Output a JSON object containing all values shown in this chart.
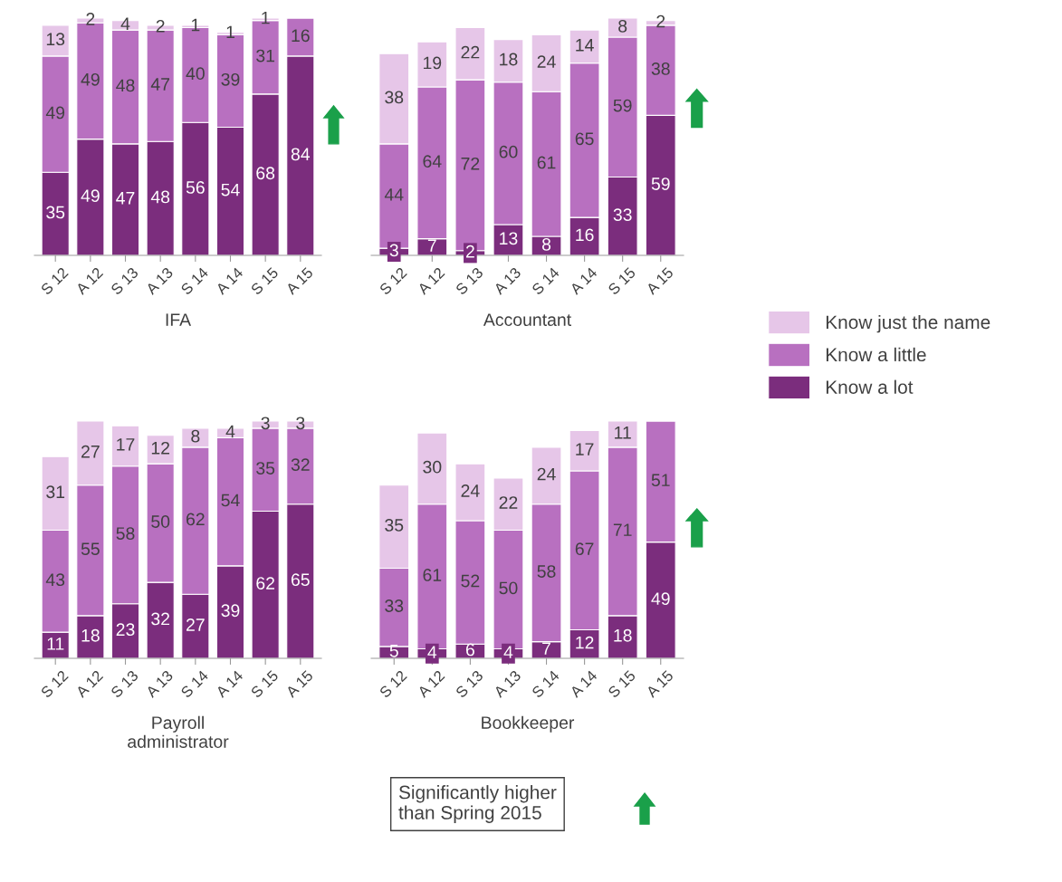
{
  "chart_data": [
    {
      "type": "bar",
      "stacked": true,
      "data_labels": true,
      "tick_labels": "x",
      "legend": "right",
      "xlabel": "IFA",
      "categories": [
        "S 12",
        "A 12",
        "S 13",
        "A 13",
        "S 14",
        "A 14",
        "S 15",
        "A 15"
      ],
      "series": [
        {
          "name": "Know a lot",
          "color": "#7b2d7d",
          "values": [
            35,
            49,
            47,
            48,
            56,
            54,
            68,
            84
          ]
        },
        {
          "name": "Know a little",
          "color": "#b870c0",
          "values": [
            49,
            49,
            48,
            47,
            40,
            39,
            31,
            16
          ]
        },
        {
          "name": "Know just the name",
          "color": "#e6c6e8",
          "values": [
            13,
            2,
            4,
            2,
            1,
            1,
            1,
            null
          ]
        }
      ]
    },
    {
      "type": "bar",
      "stacked": true,
      "data_labels": true,
      "tick_labels": "x",
      "xlabel": "Accountant",
      "categories": [
        "S 12",
        "A 12",
        "S 13",
        "A 13",
        "S 14",
        "A 14",
        "S 15",
        "A 15"
      ],
      "series": [
        {
          "color": "#7b2d7d",
          "values": [
            3,
            7,
            2,
            13,
            8,
            16,
            33,
            59
          ]
        },
        {
          "color": "#b870c0",
          "values": [
            44,
            64,
            72,
            60,
            61,
            65,
            59,
            38
          ]
        },
        {
          "color": "#e6c6e8",
          "values": [
            38,
            19,
            22,
            18,
            24,
            14,
            8,
            2
          ]
        }
      ]
    },
    {
      "type": "bar",
      "stacked": true,
      "data_labels": true,
      "tick_labels": "x",
      "xlabel": "Payroll\nadministrator",
      "categories": [
        "S 12",
        "A 12",
        "S 13",
        "A 13",
        "S 14",
        "A 14",
        "S 15",
        "A 15"
      ],
      "series": [
        {
          "color": "#7b2d7d",
          "values": [
            11,
            18,
            23,
            32,
            27,
            39,
            62,
            65
          ]
        },
        {
          "color": "#b870c0",
          "values": [
            43,
            55,
            58,
            50,
            62,
            54,
            35,
            32
          ]
        },
        {
          "color": "#e6c6e8",
          "values": [
            31,
            27,
            17,
            12,
            8,
            4,
            3,
            3
          ]
        }
      ]
    },
    {
      "type": "bar",
      "stacked": true,
      "data_labels": true,
      "tick_labels": "x",
      "xlabel": "Bookkeeper",
      "annotations": [
        "Significantly higher\nthan Spring 2015"
      ],
      "categories": [
        "S 12",
        "A 12",
        "S 13",
        "A 13",
        "S 14",
        "A 14",
        "S 15",
        "A 15"
      ],
      "series": [
        {
          "color": "#7b2d7d",
          "values": [
            5,
            4,
            6,
            4,
            7,
            12,
            18,
            49
          ]
        },
        {
          "color": "#b870c0",
          "values": [
            33,
            61,
            52,
            50,
            58,
            67,
            71,
            51
          ]
        },
        {
          "color": "#e6c6e8",
          "values": [
            35,
            30,
            24,
            22,
            24,
            17,
            11,
            null
          ]
        }
      ]
    }
  ]
}
